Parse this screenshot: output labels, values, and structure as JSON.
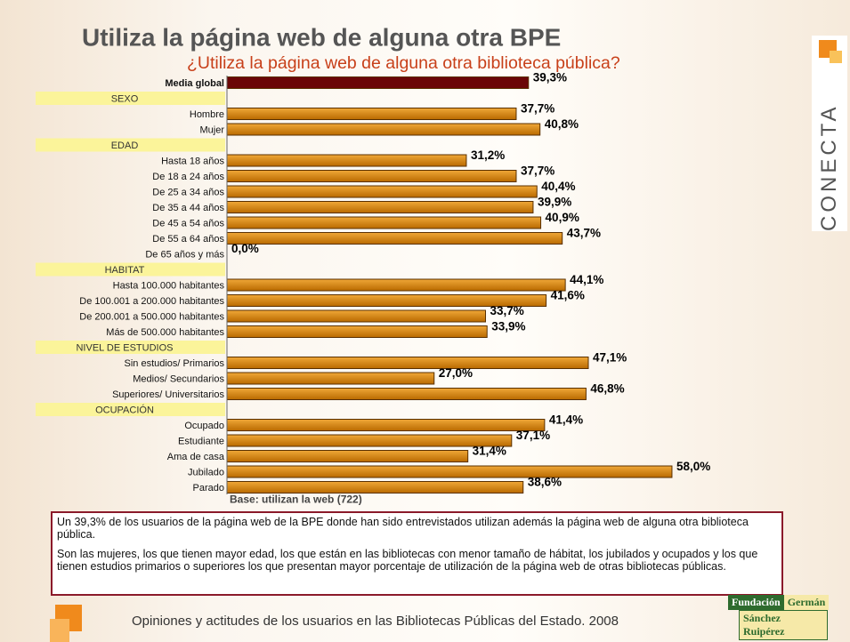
{
  "chart_data": {
    "type": "bar",
    "orientation": "horizontal",
    "title": "Utiliza la página web de alguna otra BPE",
    "subtitle": "¿Utiliza la página web de alguna otra biblioteca pública?",
    "note": "Base: utilizan la web (722)",
    "color": "#d4870a",
    "overall": {
      "category": "Media global",
      "value": 39.3,
      "value_label": "39,3%",
      "color": "#6b0606"
    },
    "sections": [
      {
        "name": "SEXO",
        "categories": [
          "Hombre",
          "Mujer"
        ],
        "values": [
          37.7,
          40.8
        ],
        "value_labels": [
          "37,7%",
          "40,8%"
        ]
      },
      {
        "name": "EDAD",
        "categories": [
          "Hasta 18 años",
          "De 18 a 24 años",
          "De 25 a 34 años",
          "De 35 a 44 años",
          "De 45 a 54 años",
          "De 55 a 64 años",
          "De 65 años y más"
        ],
        "values": [
          31.2,
          37.7,
          40.4,
          39.9,
          40.9,
          43.7,
          0.0
        ],
        "value_labels": [
          "31,2%",
          "37,7%",
          "40,4%",
          "39,9%",
          "40,9%",
          "43,7%",
          "0,0%"
        ]
      },
      {
        "name": "HABITAT",
        "categories": [
          "Hasta 100.000 habitantes",
          "De 100.001 a 200.000 habitantes",
          "De 200.001 a 500.000 habitantes",
          "Más de 500.000 habitantes"
        ],
        "values": [
          44.1,
          41.6,
          33.7,
          33.9
        ],
        "value_labels": [
          "44,1%",
          "41,6%",
          "33,7%",
          "33,9%"
        ]
      },
      {
        "name": "NIVEL DE ESTUDIOS",
        "categories": [
          "Sin estudios/ Primarios",
          "Medios/ Secundarios",
          "Superiores/ Universitarios"
        ],
        "values": [
          47.1,
          27.0,
          46.8
        ],
        "value_labels": [
          "47,1%",
          "27,0%",
          "46,8%"
        ]
      },
      {
        "name": "OCUPACIÓN",
        "categories": [
          "Ocupado",
          "Estudiante",
          "Ama de casa",
          "Jubilado",
          "Parado"
        ],
        "values": [
          41.4,
          37.1,
          31.4,
          58.0,
          38.6
        ],
        "value_labels": [
          "41,4%",
          "37,1%",
          "31,4%",
          "58,0%",
          "38,6%"
        ]
      }
    ]
  },
  "text_box": {
    "paragraphs": [
      "Un 39,3% de los usuarios de la página web de la BPE donde han sido entrevistados utilizan además la página web de alguna otra biblioteca pública.",
      "Son las mujeres, los que tienen mayor edad, los que están en las bibliotecas con menor tamaño de hábitat, los jubilados y ocupados y los que tienen estudios primarios o superiores los que presentan mayor porcentaje de utilización de la página web de otras bibliotecas públicas."
    ]
  },
  "footer": "Opiniones y actitudes de los usuarios en las Bibliotecas Públicas del Estado. 2008",
  "brand": "CONECTA",
  "logo": {
    "line1a": "Fundación",
    "line1b": "Germán",
    "line2": "Sánchez Ruipérez"
  }
}
